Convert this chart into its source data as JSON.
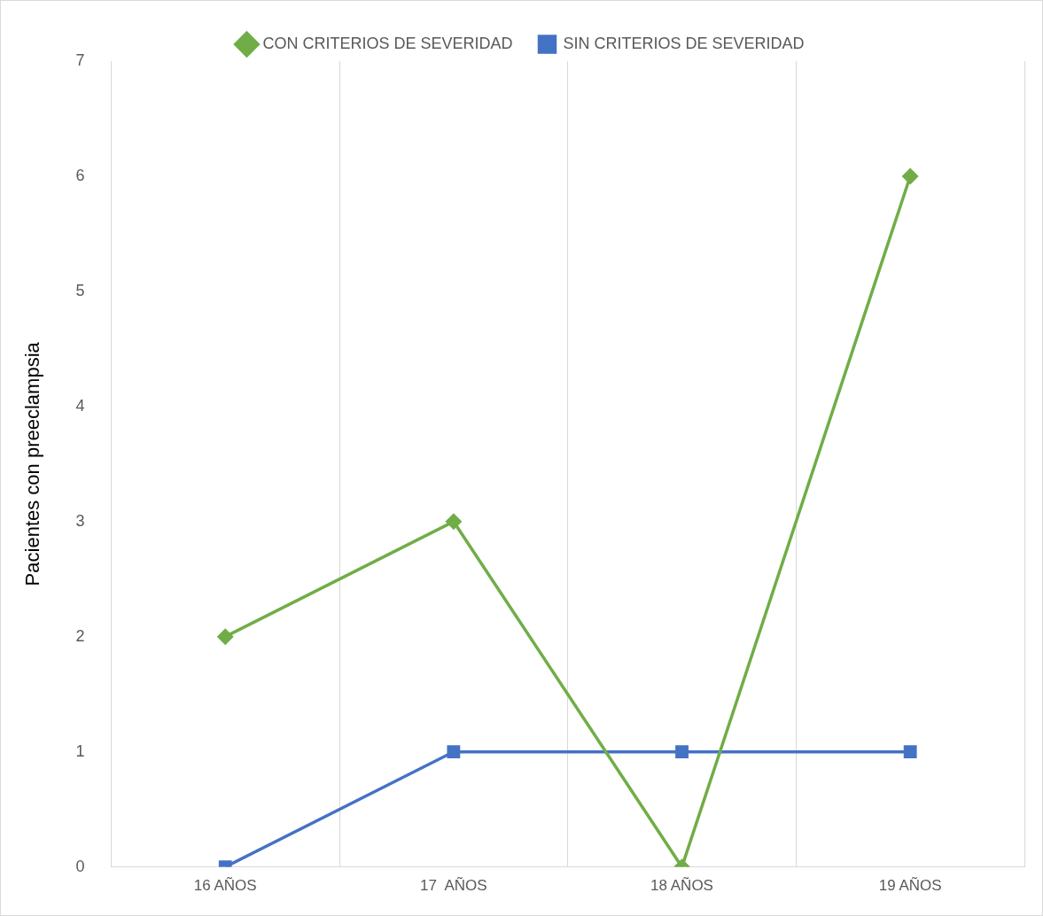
{
  "chart_data": {
    "type": "line",
    "ylabel": "Pacientes con preeclampsia",
    "categories": [
      "16 AÑOS",
      "17  AÑOS",
      "18 AÑOS",
      "19 AÑOS"
    ],
    "series": [
      {
        "name": "CON CRITERIOS DE SEVERIDAD",
        "color": "#70ad47",
        "values": [
          2,
          3,
          0,
          6
        ],
        "marker": "diamond"
      },
      {
        "name": "SIN CRITERIOS DE SEVERIDAD",
        "color": "#4472c4",
        "values": [
          0,
          1,
          1,
          1
        ],
        "marker": "square"
      }
    ],
    "ylim": [
      0,
      7
    ],
    "yticks": [
      0,
      1,
      2,
      3,
      4,
      5,
      6,
      7
    ],
    "grid": "x",
    "legend": "top",
    "line_style": "solid"
  }
}
